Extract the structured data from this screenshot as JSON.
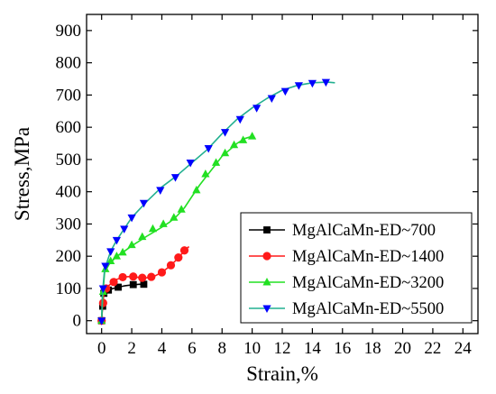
{
  "chart_data": {
    "type": "line",
    "title": "",
    "xlabel": "Strain,%",
    "ylabel": "Stress,MPa",
    "xlim": [
      -1,
      25
    ],
    "ylim": [
      -40,
      950
    ],
    "x_ticks": [
      0,
      2,
      4,
      6,
      8,
      10,
      12,
      14,
      16,
      18,
      20,
      22,
      24
    ],
    "y_ticks": [
      0,
      100,
      200,
      300,
      400,
      500,
      600,
      700,
      800,
      900
    ],
    "grid": false,
    "legend_position": "bottom-right",
    "series": [
      {
        "name": "MgAlCaMn-ED~700",
        "color": "#000000",
        "line_color": "#000000",
        "marker": "square",
        "curve": [
          [
            0,
            0
          ],
          [
            0.08,
            60
          ],
          [
            0.15,
            85
          ],
          [
            0.3,
            92
          ],
          [
            0.6,
            98
          ],
          [
            1,
            103
          ],
          [
            1.5,
            108
          ],
          [
            2,
            111
          ],
          [
            2.5,
            113
          ],
          [
            2.8,
            113
          ]
        ],
        "markers": [
          [
            0,
            0
          ],
          [
            0.07,
            45
          ],
          [
            0.15,
            85
          ],
          [
            0.45,
            95
          ],
          [
            1.1,
            104
          ],
          [
            2.1,
            112
          ],
          [
            2.8,
            113
          ]
        ]
      },
      {
        "name": "MgAlCaMn-ED~1400",
        "color": "#ff1a1a",
        "line_color": "#ff1a1a",
        "marker": "circle",
        "curve": [
          [
            0,
            0
          ],
          [
            0.08,
            60
          ],
          [
            0.2,
            95
          ],
          [
            0.5,
            110
          ],
          [
            1,
            128
          ],
          [
            1.5,
            136
          ],
          [
            2,
            137
          ],
          [
            2.5,
            134
          ],
          [
            3,
            133
          ],
          [
            3.5,
            138
          ],
          [
            4,
            150
          ],
          [
            4.5,
            168
          ],
          [
            5,
            190
          ],
          [
            5.5,
            217
          ],
          [
            5.8,
            230
          ]
        ],
        "markers": [
          [
            0,
            0
          ],
          [
            0.1,
            55
          ],
          [
            0.3,
            100
          ],
          [
            0.8,
            120
          ],
          [
            1.4,
            135
          ],
          [
            2.1,
            137
          ],
          [
            2.7,
            133
          ],
          [
            3.3,
            136
          ],
          [
            4,
            150
          ],
          [
            4.6,
            172
          ],
          [
            5.1,
            196
          ],
          [
            5.5,
            218
          ]
        ]
      },
      {
        "name": "MgAlCaMn-ED~3200",
        "color": "#22e022",
        "line_color": "#22e022",
        "marker": "triangle-up",
        "curve": [
          [
            0,
            0
          ],
          [
            0.08,
            80
          ],
          [
            0.2,
            150
          ],
          [
            0.5,
            175
          ],
          [
            1,
            200
          ],
          [
            1.5,
            215
          ],
          [
            2,
            232
          ],
          [
            3,
            262
          ],
          [
            4,
            290
          ],
          [
            4.5,
            305
          ],
          [
            5,
            325
          ],
          [
            5.5,
            350
          ],
          [
            6,
            385
          ],
          [
            6.5,
            420
          ],
          [
            7,
            450
          ],
          [
            7.5,
            480
          ],
          [
            8,
            510
          ],
          [
            8.5,
            530
          ],
          [
            9,
            550
          ],
          [
            9.5,
            565
          ],
          [
            10,
            572
          ]
        ],
        "markers": [
          [
            0,
            0
          ],
          [
            0.1,
            90
          ],
          [
            0.25,
            160
          ],
          [
            0.6,
            185
          ],
          [
            1,
            200
          ],
          [
            1.4,
            212
          ],
          [
            2,
            235
          ],
          [
            2.7,
            260
          ],
          [
            3.4,
            285
          ],
          [
            4.1,
            300
          ],
          [
            4.8,
            320
          ],
          [
            5.3,
            345
          ],
          [
            6.3,
            405
          ],
          [
            6.9,
            455
          ],
          [
            7.6,
            490
          ],
          [
            8.2,
            520
          ],
          [
            8.8,
            545
          ],
          [
            9.4,
            560
          ],
          [
            10,
            572
          ]
        ]
      },
      {
        "name": "MgAlCaMn-ED~5500",
        "color": "#0000ff",
        "line_color": "#22b090",
        "marker": "triangle-down",
        "curve": [
          [
            0,
            0
          ],
          [
            0.05,
            80
          ],
          [
            0.2,
            160
          ],
          [
            0.6,
            215
          ],
          [
            1,
            250
          ],
          [
            2,
            320
          ],
          [
            3,
            370
          ],
          [
            4,
            415
          ],
          [
            5,
            450
          ],
          [
            6,
            490
          ],
          [
            7,
            530
          ],
          [
            8,
            580
          ],
          [
            9,
            625
          ],
          [
            10,
            660
          ],
          [
            11,
            690
          ],
          [
            12,
            715
          ],
          [
            13,
            730
          ],
          [
            14,
            738
          ],
          [
            15,
            740
          ],
          [
            15.5,
            738
          ]
        ],
        "markers": [
          [
            0,
            0
          ],
          [
            0.1,
            100
          ],
          [
            0.25,
            170
          ],
          [
            0.6,
            215
          ],
          [
            1,
            250
          ],
          [
            1.5,
            285
          ],
          [
            2,
            320
          ],
          [
            2.8,
            365
          ],
          [
            3.9,
            405
          ],
          [
            4.9,
            445
          ],
          [
            5.9,
            490
          ],
          [
            7.1,
            535
          ],
          [
            8.2,
            585
          ],
          [
            9.2,
            625
          ],
          [
            10.3,
            660
          ],
          [
            11.3,
            690
          ],
          [
            12.2,
            712
          ],
          [
            13.1,
            730
          ],
          [
            14,
            737
          ],
          [
            14.9,
            740
          ]
        ]
      }
    ]
  }
}
